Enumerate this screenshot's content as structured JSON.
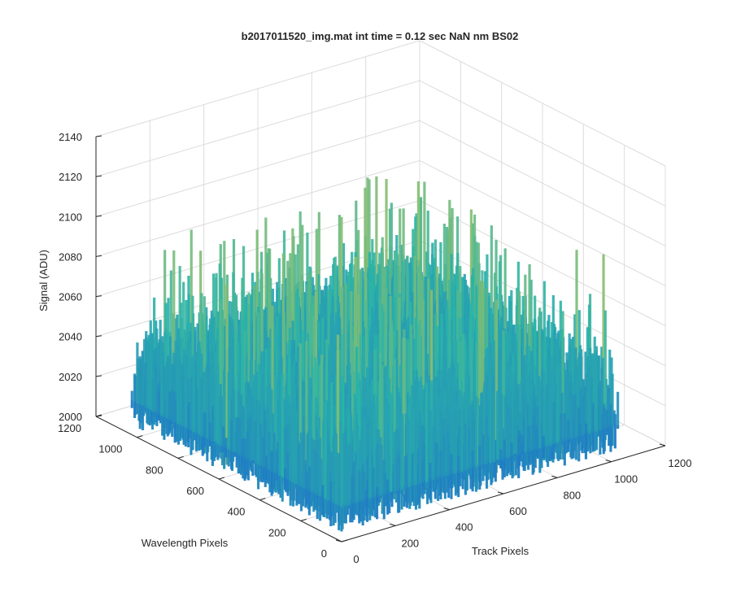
{
  "chart_data": {
    "type": "surface3d",
    "title": "b2017011520_img.mat int time = 0.12 sec  NaN nm BS02",
    "xlabel": "Track Pixels",
    "ylabel": "Wavelength Pixels",
    "zlabel": "Signal (ADU)",
    "xlim": [
      0,
      1200
    ],
    "ylim": [
      0,
      1200
    ],
    "zlim": [
      2000,
      2140
    ],
    "x_ticks": [
      "0",
      "200",
      "400",
      "600",
      "800",
      "1000",
      "1200"
    ],
    "y_ticks": [
      "0",
      "200",
      "400",
      "600",
      "800",
      "1000",
      "1200"
    ],
    "z_ticks": [
      "2000",
      "2020",
      "2040",
      "2060",
      "2080",
      "2100",
      "2120",
      "2140"
    ],
    "grid": true,
    "colormap": "parula",
    "data_extent": {
      "x": [
        0,
        1024
      ],
      "y": [
        0,
        1024
      ]
    },
    "signal_mean": 2040,
    "signal_range": [
      2005,
      2125
    ],
    "colors": {
      "low": "#1f74c9",
      "mid": "#2bb4a8",
      "high": "#d6c542",
      "grid": "#dcdcdc",
      "axis": "#262626"
    }
  }
}
